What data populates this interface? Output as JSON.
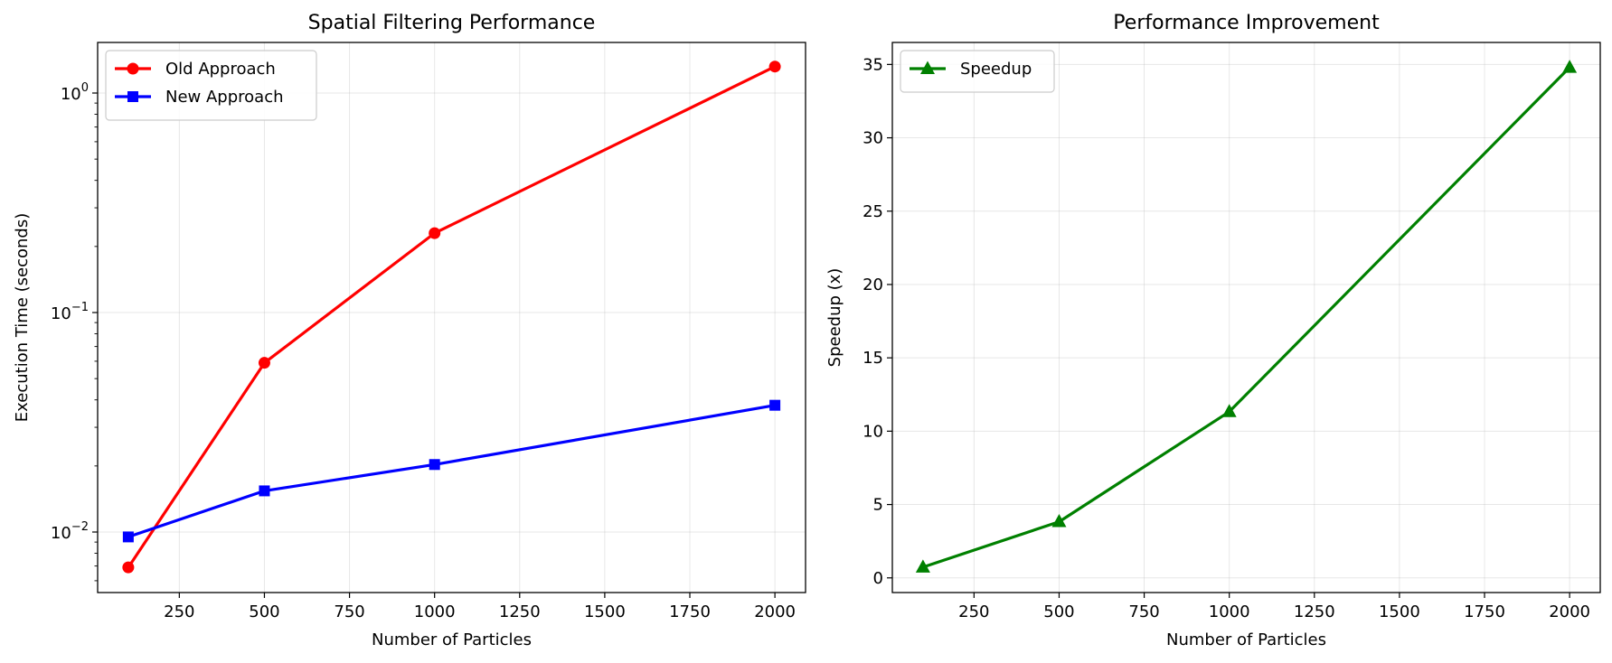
{
  "chart_data": [
    {
      "type": "line",
      "title": "Spatial Filtering Performance",
      "xlabel": "Number of Particles",
      "ylabel": "Execution Time (seconds)",
      "yscale": "log",
      "xlim": [
        10,
        2090
      ],
      "ylim": [
        0.0053,
        1.7
      ],
      "xticks": [
        250,
        500,
        750,
        1000,
        1250,
        1500,
        1750,
        2000
      ],
      "yticks": [
        {
          "value": 0.01,
          "base": "10",
          "exp": "−2"
        },
        {
          "value": 0.1,
          "base": "10",
          "exp": "−1"
        },
        {
          "value": 1,
          "base": "10",
          "exp": "0"
        }
      ],
      "grid": true,
      "legend_position": "top-left",
      "x": [
        100,
        500,
        1000,
        2000
      ],
      "series": [
        {
          "name": "Old Approach",
          "color": "#ff0000",
          "marker": "circle",
          "values": [
            0.0069,
            0.059,
            0.23,
            1.32
          ]
        },
        {
          "name": "New Approach",
          "color": "#0000ff",
          "marker": "square",
          "values": [
            0.0095,
            0.0154,
            0.0203,
            0.0378
          ]
        }
      ]
    },
    {
      "type": "line",
      "title": "Performance Improvement",
      "xlabel": "Number of Particles",
      "ylabel": "Speedup (x)",
      "yscale": "linear",
      "xlim": [
        10,
        2090
      ],
      "ylim": [
        -1.0,
        36.5
      ],
      "xticks": [
        250,
        500,
        750,
        1000,
        1250,
        1500,
        1750,
        2000
      ],
      "yticks": [
        {
          "value": 0,
          "label": "0"
        },
        {
          "value": 5,
          "label": "5"
        },
        {
          "value": 10,
          "label": "10"
        },
        {
          "value": 15,
          "label": "15"
        },
        {
          "value": 20,
          "label": "20"
        },
        {
          "value": 25,
          "label": "25"
        },
        {
          "value": 30,
          "label": "30"
        },
        {
          "value": 35,
          "label": "35"
        }
      ],
      "grid": true,
      "legend_position": "top-left",
      "x": [
        100,
        500,
        1000,
        2000
      ],
      "series": [
        {
          "name": "Speedup",
          "color": "#008000",
          "marker": "triangle",
          "values": [
            0.73,
            3.83,
            11.33,
            34.8
          ]
        }
      ]
    }
  ]
}
